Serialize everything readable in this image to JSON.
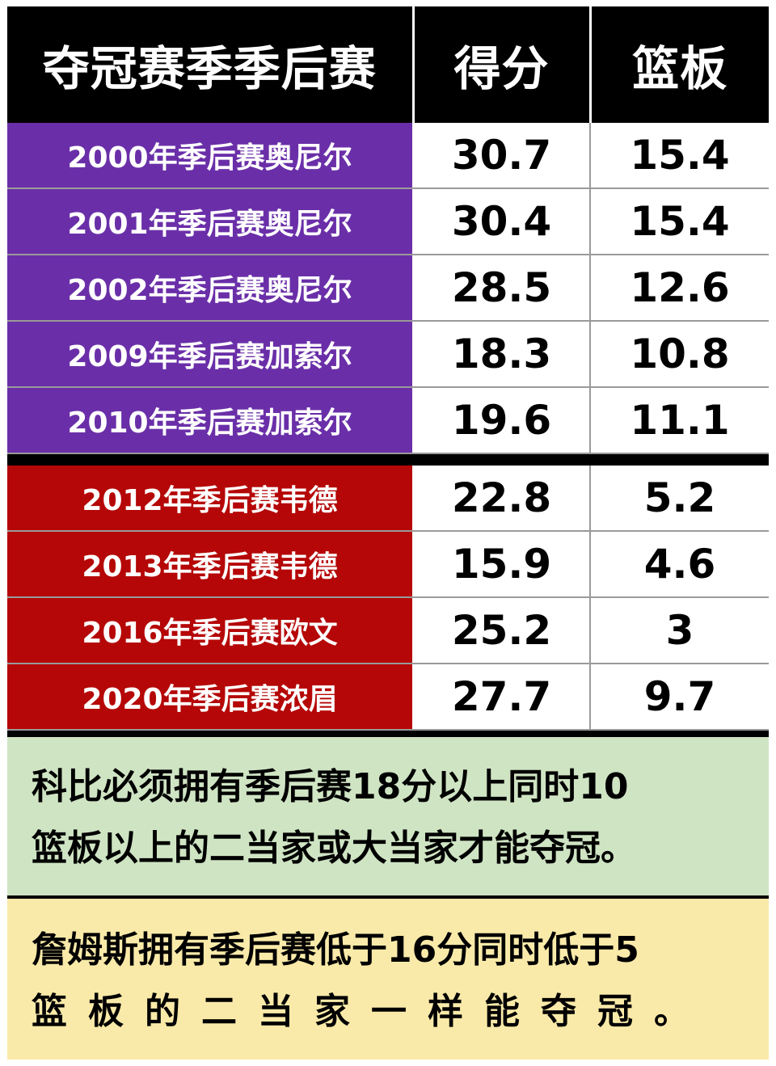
{
  "table": {
    "headers": [
      "夺冠赛季季后赛",
      "得分",
      "篮板"
    ],
    "group_a": [
      {
        "label": "2000年季后赛奥尼尔",
        "points": "30.7",
        "rebounds": "15.4"
      },
      {
        "label": "2001年季后赛奥尼尔",
        "points": "30.4",
        "rebounds": "15.4"
      },
      {
        "label": "2002年季后赛奥尼尔",
        "points": "28.5",
        "rebounds": "12.6"
      },
      {
        "label": "2009年季后赛加索尔",
        "points": "18.3",
        "rebounds": "10.8"
      },
      {
        "label": "2010年季后赛加索尔",
        "points": "19.6",
        "rebounds": "11.1"
      }
    ],
    "group_b": [
      {
        "label": "2012年季后赛韦德",
        "points": "22.8",
        "rebounds": "5.2"
      },
      {
        "label": "2013年季后赛韦德",
        "points": "15.9",
        "rebounds": "4.6"
      },
      {
        "label": "2016年季后赛欧文",
        "points": "25.2",
        "rebounds": "3"
      },
      {
        "label": "2020年季后赛浓眉",
        "points": "27.7",
        "rebounds": "9.7"
      }
    ]
  },
  "notes": {
    "green": {
      "line1": "科比必须拥有季后赛18分以上同时10",
      "line2": "篮板以上的二当家或大当家才能夺冠。"
    },
    "yellow": {
      "line1": "詹姆斯拥有季后赛低于16分同时低于5",
      "line2": "篮板的二当家一样能夺冠。"
    }
  },
  "colors": {
    "header_bg": "#000000",
    "group_a_label_bg": "#6a2fa8",
    "group_b_label_bg": "#b50707",
    "green_note_bg": "#cfe4c3",
    "yellow_note_bg": "#faeaa9"
  }
}
